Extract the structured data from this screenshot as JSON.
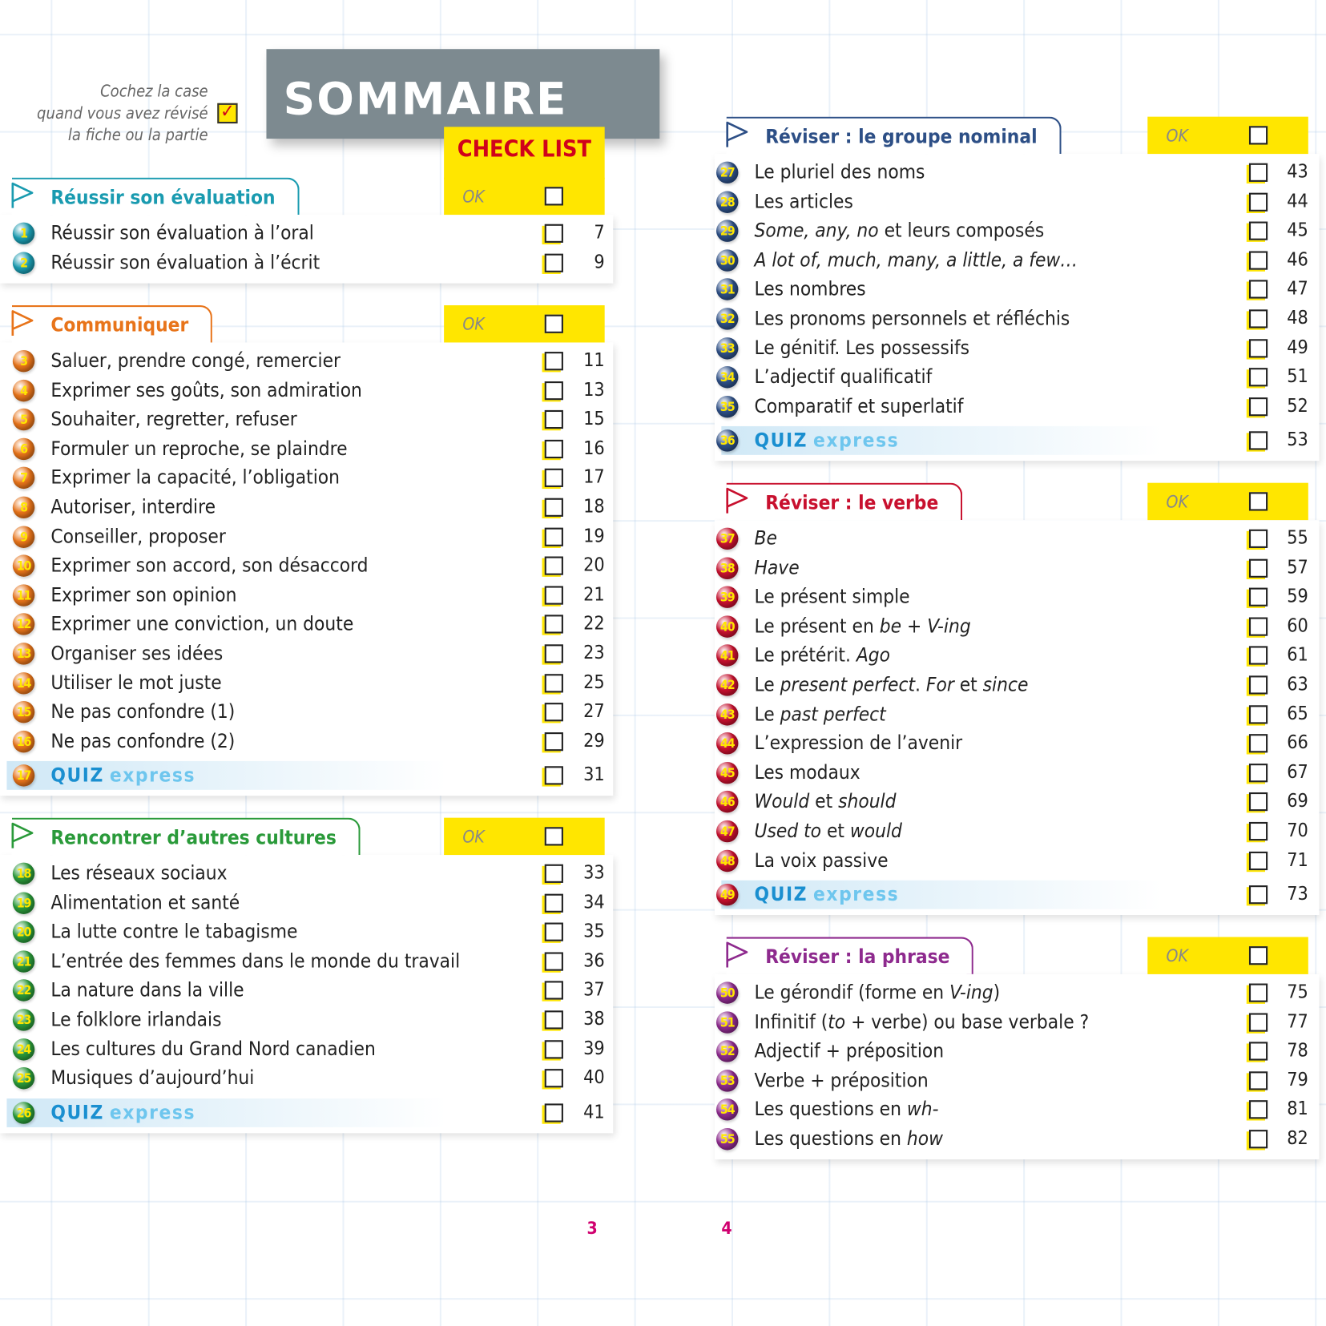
{
  "header": {
    "instruction": [
      "Cochez la case",
      "quand vous avez révisé",
      "la fiche ou la partie"
    ],
    "title": "SOMMAIRE",
    "subtitle": "CHECK LIST"
  },
  "sections": [
    {
      "title": "Réussir son évaluation",
      "color": "#1a9bb0",
      "ok": "OK",
      "items": [
        {
          "number": 1,
          "label": "Réussir son évaluation à l’oral",
          "page": 7
        },
        {
          "number": 2,
          "label": "Réussir son évaluation à l’écrit",
          "page": 9
        }
      ]
    },
    {
      "title": "Communiquer",
      "color": "#e8741a",
      "ok": "OK",
      "items": [
        {
          "number": 3,
          "label": "Saluer, prendre congé, remercier",
          "page": 11
        },
        {
          "number": 4,
          "label": "Exprimer ses goûts, son admiration",
          "page": 13
        },
        {
          "number": 5,
          "label": "Souhaiter, regretter, refuser",
          "page": 15
        },
        {
          "number": 6,
          "label": "Formuler un reproche, se plaindre",
          "page": 16
        },
        {
          "number": 7,
          "label": "Exprimer la capacité, l’obligation",
          "page": 17
        },
        {
          "number": 8,
          "label": "Autoriser, interdire",
          "page": 18
        },
        {
          "number": 9,
          "label": "Conseiller, proposer",
          "page": 19
        },
        {
          "number": 10,
          "label": "Exprimer son accord, son désaccord",
          "page": 20
        },
        {
          "number": 11,
          "label": "Exprimer son opinion",
          "page": 21
        },
        {
          "number": 12,
          "label": "Exprimer une conviction, un doute",
          "page": 22
        },
        {
          "number": 13,
          "label": "Organiser ses idées",
          "page": 23
        },
        {
          "number": 14,
          "label": "Utiliser le mot juste",
          "page": 25
        },
        {
          "number": 15,
          "label": "Ne pas confondre (1)",
          "page": 27
        },
        {
          "number": 16,
          "label": "Ne pas confondre (2)",
          "page": 29
        },
        {
          "number": 17,
          "quiz": [
            "QUIZ",
            "express"
          ],
          "page": 31
        }
      ]
    },
    {
      "title": "Rencontrer d’autres cultures",
      "color": "#2a9a3a",
      "ok": "OK",
      "items": [
        {
          "number": 18,
          "label": "Les réseaux sociaux",
          "page": 33
        },
        {
          "number": 19,
          "label": "Alimentation et santé",
          "page": 34
        },
        {
          "number": 20,
          "label": "La lutte contre le tabagisme",
          "page": 35
        },
        {
          "number": 21,
          "label": "L’entrée des femmes dans le monde du travail",
          "page": 36
        },
        {
          "number": 22,
          "label": "La nature dans la ville",
          "page": 37
        },
        {
          "number": 23,
          "label": "Le folklore irlandais",
          "page": 38
        },
        {
          "number": 24,
          "label": "Les cultures du Grand Nord canadien",
          "page": 39
        },
        {
          "number": 25,
          "label": "Musiques d’aujourd’hui",
          "page": 40
        },
        {
          "number": 26,
          "quiz": [
            "QUIZ",
            "express"
          ],
          "page": 41
        }
      ]
    },
    {
      "title": "Réviser : le groupe nominal",
      "color": "#2d4f86",
      "ok": "OK",
      "items": [
        {
          "number": 27,
          "label": "Le pluriel des noms",
          "page": 43
        },
        {
          "number": 28,
          "label": "Les articles",
          "page": 44
        },
        {
          "number": 29,
          "label": [
            {
              "text": "Some, any, no",
              "italic": true
            },
            {
              "text": " et leurs composés"
            }
          ],
          "page": 45
        },
        {
          "number": 30,
          "label": [
            {
              "text": "A lot of, much, many, a little, a few…",
              "italic": true
            }
          ],
          "page": 46
        },
        {
          "number": 31,
          "label": "Les nombres",
          "page": 47
        },
        {
          "number": 32,
          "label": "Les pronoms personnels et réfléchis",
          "page": 48
        },
        {
          "number": 33,
          "label": "Le génitif. Les possessifs",
          "page": 49
        },
        {
          "number": 34,
          "label": "L’adjectif qualificatif",
          "page": 51
        },
        {
          "number": 35,
          "label": "Comparatif et superlatif",
          "page": 52
        },
        {
          "number": 36,
          "quiz": [
            "QUIZ",
            "express"
          ],
          "page": 53
        }
      ]
    },
    {
      "title": "Réviser : le verbe",
      "color": "#c8102e",
      "ok": "OK",
      "items": [
        {
          "number": 37,
          "label": [
            {
              "text": "Be",
              "italic": true
            }
          ],
          "page": 55
        },
        {
          "number": 38,
          "label": [
            {
              "text": "Have",
              "italic": true
            }
          ],
          "page": 57
        },
        {
          "number": 39,
          "label": "Le présent simple",
          "page": 59
        },
        {
          "number": 40,
          "label": [
            {
              "text": "Le présent en "
            },
            {
              "text": "be",
              "italic": true
            },
            {
              "text": " + "
            },
            {
              "text": "V-ing",
              "italic": true
            }
          ],
          "page": 60
        },
        {
          "number": 41,
          "label": [
            {
              "text": "Le prétérit. "
            },
            {
              "text": "Ago",
              "italic": true
            }
          ],
          "page": 61
        },
        {
          "number": 42,
          "label": [
            {
              "text": "Le "
            },
            {
              "text": "present perfect",
              "italic": true
            },
            {
              "text": ". "
            },
            {
              "text": "For",
              "italic": true
            },
            {
              "text": " et "
            },
            {
              "text": "since",
              "italic": true
            }
          ],
          "page": 63
        },
        {
          "number": 43,
          "label": [
            {
              "text": "Le "
            },
            {
              "text": "past perfect",
              "italic": true
            }
          ],
          "page": 65
        },
        {
          "number": 44,
          "label": "L’expression de l’avenir",
          "page": 66
        },
        {
          "number": 45,
          "label": "Les modaux",
          "page": 67
        },
        {
          "number": 46,
          "label": [
            {
              "text": "Would",
              "italic": true
            },
            {
              "text": " et "
            },
            {
              "text": "should",
              "italic": true
            }
          ],
          "page": 69
        },
        {
          "number": 47,
          "label": [
            {
              "text": "Used to",
              "italic": true
            },
            {
              "text": " et "
            },
            {
              "text": "would",
              "italic": true
            }
          ],
          "page": 70
        },
        {
          "number": 48,
          "label": "La voix passive",
          "page": 71
        },
        {
          "number": 49,
          "quiz": [
            "QUIZ",
            "express"
          ],
          "page": 73
        }
      ]
    },
    {
      "title": "Réviser : la phrase",
      "color": "#8e2a8e",
      "ok": "OK",
      "items": [
        {
          "number": 50,
          "label": [
            {
              "text": "Le gérondif (forme en "
            },
            {
              "text": "V-ing",
              "italic": true
            },
            {
              "text": ")"
            }
          ],
          "page": 75
        },
        {
          "number": 51,
          "label": [
            {
              "text": "Infinitif ("
            },
            {
              "text": "to",
              "italic": true
            },
            {
              "text": " + verbe) ou base verbale ?"
            }
          ],
          "page": 77
        },
        {
          "number": 52,
          "label": "Adjectif + préposition",
          "page": 78
        },
        {
          "number": 53,
          "label": "Verbe + préposition",
          "page": 79
        },
        {
          "number": 54,
          "label": [
            {
              "text": "Les questions en "
            },
            {
              "text": "wh-",
              "italic": true
            }
          ],
          "page": 81
        },
        {
          "number": 55,
          "label": [
            {
              "text": "Les questions en "
            },
            {
              "text": "how",
              "italic": true
            }
          ],
          "page": 82
        }
      ]
    }
  ],
  "footer": {
    "pages": [
      3,
      4
    ]
  }
}
